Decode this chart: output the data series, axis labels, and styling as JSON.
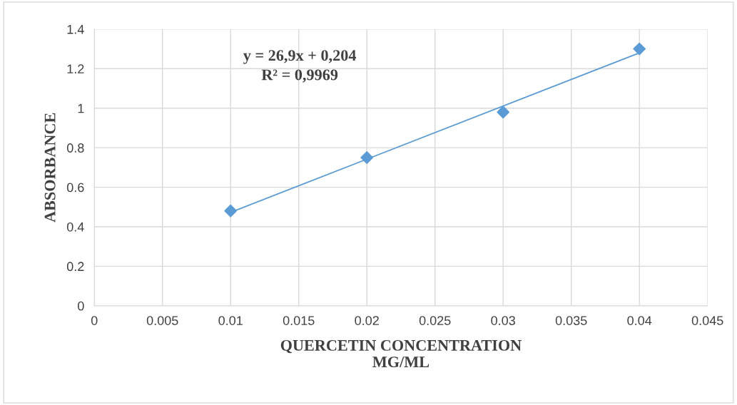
{
  "chart_data": {
    "type": "scatter",
    "xlabel": "QUERCETIN CONCENTRATION\nMG/ML",
    "ylabel": "ABSORBANCE",
    "xlim": [
      0,
      0.045
    ],
    "xticks": [
      0,
      0.005,
      0.01,
      0.015,
      0.02,
      0.025,
      0.03,
      0.035,
      0.04,
      0.045
    ],
    "ylim": [
      0,
      1.4
    ],
    "yticks": [
      0,
      0.2,
      0.4,
      0.6,
      0.8,
      1,
      1.2,
      1.4
    ],
    "grid": true,
    "marker": "diamond",
    "series": [
      {
        "color": "#5b9bd5",
        "x": [
          0.01,
          0.02,
          0.03,
          0.04
        ],
        "values": [
          0.48,
          0.75,
          0.98,
          1.3
        ]
      },
      {
        "type": "line",
        "color": "#5b9bd5",
        "marker": "none",
        "x": [
          0.01,
          0.04
        ],
        "values": [
          0.473,
          1.28
        ]
      }
    ],
    "annotations": [
      "y = 26,9x + 0,204",
      "R² = 0,9969"
    ]
  }
}
